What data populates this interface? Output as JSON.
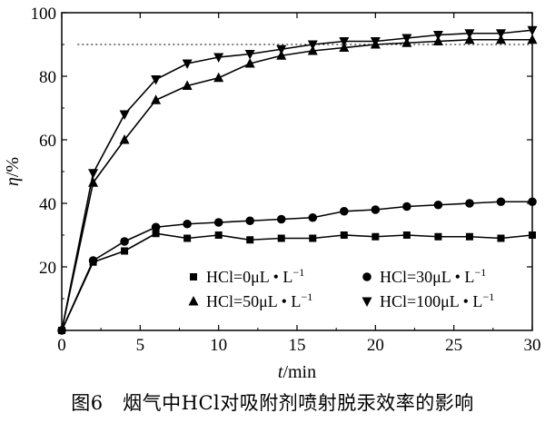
{
  "chart_data": {
    "type": "line",
    "xlabel_italic": "t",
    "xlabel_unit": "/min",
    "ylabel_italic": "η",
    "ylabel_unit": "/%",
    "xlim": [
      0,
      30
    ],
    "ylim": [
      0,
      100
    ],
    "xticks": [
      0,
      5,
      10,
      15,
      20,
      25,
      30
    ],
    "yticks": [
      20,
      40,
      60,
      80,
      100
    ],
    "reference_line": {
      "y": 90,
      "style": "dotted"
    },
    "legend_placement": "bottom-right",
    "series": [
      {
        "name": "HCl=0μL·L⁻¹",
        "legend_main": "HCl=0μL • L",
        "marker": "square",
        "x": [
          0,
          2,
          4,
          6,
          8,
          10,
          12,
          14,
          16,
          18,
          20,
          22,
          24,
          26,
          28,
          30
        ],
        "y": [
          0,
          21.5,
          25,
          30.5,
          29,
          30,
          28.5,
          29,
          29,
          30,
          29.5,
          30,
          29.5,
          29.5,
          29,
          30
        ]
      },
      {
        "name": "HCl=30μL·L⁻¹",
        "legend_main": "HCl=30μL • L",
        "marker": "circle",
        "x": [
          0,
          2,
          4,
          6,
          8,
          10,
          12,
          14,
          16,
          18,
          20,
          22,
          24,
          26,
          28,
          30
        ],
        "y": [
          0,
          22,
          28,
          32.5,
          33.5,
          34,
          34.5,
          35,
          35.5,
          37.5,
          38,
          39,
          39.5,
          40,
          40.5,
          40.5
        ]
      },
      {
        "name": "HCl=50μL·L⁻¹",
        "legend_main": "HCl=50μL • L",
        "marker": "triangle-up",
        "x": [
          0,
          2,
          4,
          6,
          8,
          10,
          12,
          14,
          16,
          18,
          20,
          22,
          24,
          26,
          28,
          30
        ],
        "y": [
          0,
          46.5,
          60,
          72.5,
          77,
          79.5,
          84,
          86.5,
          88,
          89,
          90,
          90.5,
          91,
          91.5,
          91.5,
          91.5
        ]
      },
      {
        "name": "HCl=100μL·L⁻¹",
        "legend_main": "HCl=100μL • L",
        "marker": "triangle-down",
        "x": [
          0,
          2,
          4,
          6,
          8,
          10,
          12,
          14,
          16,
          18,
          20,
          22,
          24,
          26,
          28,
          30
        ],
        "y": [
          0,
          49.5,
          68,
          79,
          84,
          86,
          87,
          88.5,
          90,
          91,
          91,
          92,
          93,
          93.5,
          93.5,
          94.5
        ]
      }
    ],
    "legend_superscript": "−1"
  },
  "caption": {
    "label": "图6",
    "text": "烟气中HCl对吸附剂喷射脱汞效率的影响"
  }
}
